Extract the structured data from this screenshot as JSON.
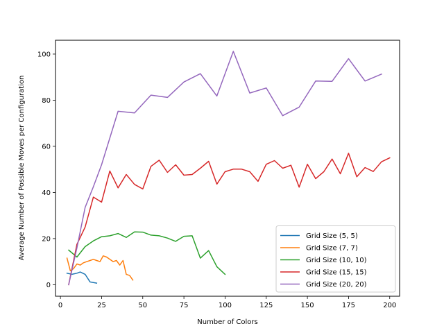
{
  "chart_data": {
    "type": "line",
    "title": "",
    "xlabel": "Number of Colors",
    "ylabel": "Average Number of Possible Moves per Configuration",
    "xlim": [
      -3,
      206
    ],
    "ylim": [
      -5,
      106
    ],
    "xticks": [
      0,
      25,
      50,
      75,
      100,
      125,
      150,
      175,
      200
    ],
    "yticks": [
      0,
      20,
      40,
      60,
      80,
      100
    ],
    "grid": false,
    "legend_position": "lower-right",
    "series": [
      {
        "name": "Grid Size (5, 5)",
        "color": "#1f77b4",
        "x": [
          4,
          7,
          10,
          12,
          15,
          18,
          22
        ],
        "y": [
          5.0,
          4.5,
          5.0,
          5.5,
          4.5,
          1.2,
          0.7
        ]
      },
      {
        "name": "Grid Size (7, 7)",
        "color": "#ff7f0e",
        "x": [
          4,
          6,
          8,
          10,
          12,
          14,
          16,
          18,
          20,
          22,
          24,
          26,
          28,
          30,
          32,
          34,
          36,
          38,
          40,
          42,
          44
        ],
        "y": [
          11.5,
          6.0,
          7.0,
          9.0,
          8.5,
          9.5,
          10.0,
          10.5,
          11.0,
          10.5,
          10.0,
          12.5,
          12.0,
          11.0,
          10.0,
          10.5,
          8.5,
          10.5,
          4.5,
          4.0,
          2.0
        ]
      },
      {
        "name": "Grid Size (10, 10)",
        "color": "#2ca02c",
        "x": [
          5,
          10,
          15,
          20,
          25,
          30,
          35,
          40,
          45,
          50,
          55,
          60,
          65,
          70,
          75,
          80,
          85,
          90,
          95,
          100
        ],
        "y": [
          15.0,
          12.0,
          16.5,
          19.0,
          20.8,
          21.2,
          22.2,
          20.5,
          22.9,
          22.8,
          21.5,
          21.2,
          20.2,
          18.8,
          21.0,
          21.2,
          11.5,
          14.8,
          7.8,
          4.5
        ]
      },
      {
        "name": "Grid Size (15, 15)",
        "color": "#d62728",
        "x": [
          5,
          10,
          15,
          20,
          25,
          30,
          35,
          40,
          45,
          50,
          55,
          60,
          65,
          70,
          75,
          80,
          85,
          90,
          95,
          100,
          105,
          110,
          115,
          120,
          125,
          130,
          135,
          140,
          145,
          150,
          155,
          160,
          165,
          170,
          175,
          180,
          185,
          190,
          195,
          200
        ],
        "y": [
          0,
          17.5,
          25.0,
          38.0,
          35.8,
          49.3,
          42.0,
          47.8,
          43.5,
          41.5,
          51.3,
          54.0,
          48.7,
          52.0,
          47.5,
          47.8,
          50.5,
          53.5,
          43.6,
          49.0,
          50.1,
          50.1,
          49.0,
          44.8,
          52.2,
          53.8,
          50.5,
          51.8,
          42.3,
          52.2,
          46.0,
          49.0,
          54.5,
          48.1,
          57.0,
          46.8,
          50.8,
          49.1,
          53.3,
          55.0
        ]
      },
      {
        "name": "Grid Size (20, 20)",
        "color": "#9467bd",
        "x": [
          5,
          10,
          15,
          20,
          25,
          35,
          45,
          55,
          65,
          75,
          85,
          95,
          105,
          115,
          125,
          135,
          145,
          155,
          165,
          175,
          185,
          195
        ],
        "y": [
          0,
          16.0,
          33.5,
          42.5,
          52.0,
          75.2,
          74.5,
          82.2,
          81.2,
          87.9,
          91.5,
          81.8,
          101.2,
          83.1,
          85.3,
          73.3,
          77.0,
          88.3,
          88.2,
          98.0,
          88.3,
          91.3
        ]
      }
    ]
  }
}
